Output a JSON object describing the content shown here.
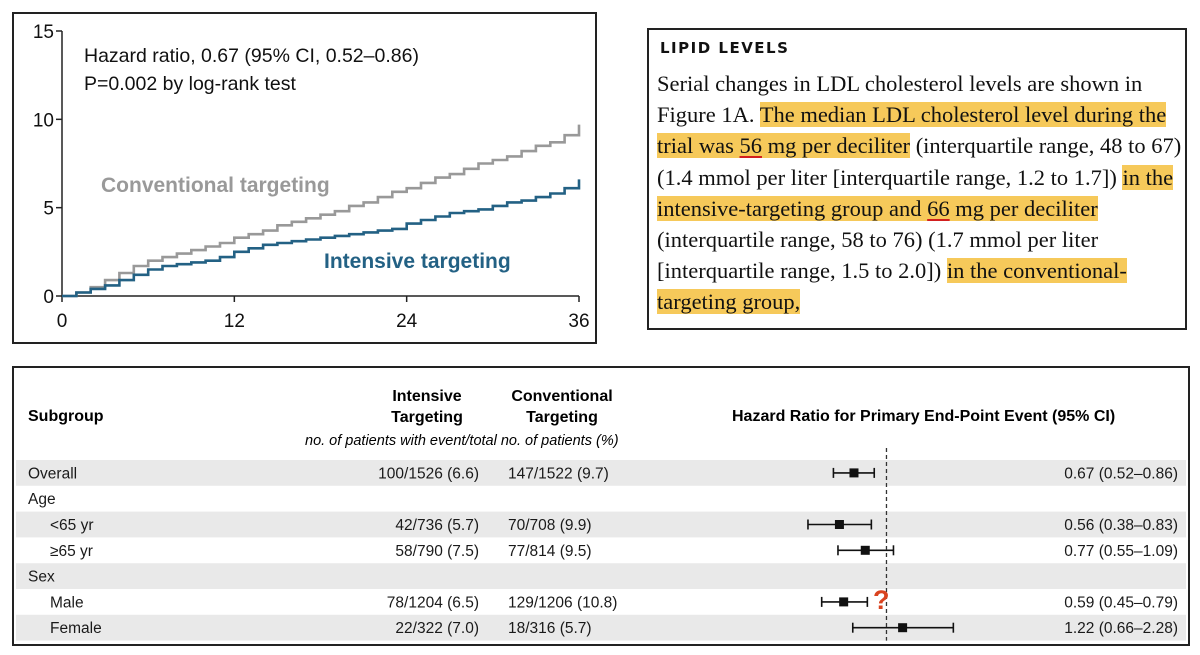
{
  "km_chart": {
    "annotation_line1": "Hazard ratio, 0.67 (95% CI, 0.52–0.86)",
    "annotation_line2": "P=0.002 by log-rank test",
    "chart_data": {
      "type": "line",
      "title": "",
      "xlabel": "",
      "ylabel": "",
      "xlim": [
        0,
        36
      ],
      "ylim": [
        0,
        15
      ],
      "x_ticks": [
        0,
        12,
        24,
        36
      ],
      "y_ticks": [
        0,
        5,
        10,
        15
      ],
      "x_tick_labels": [
        "0",
        "12",
        "24",
        "36"
      ],
      "y_tick_labels": [
        "0",
        "5",
        "10",
        "15"
      ],
      "grid": false,
      "series": [
        {
          "name": "Conventional targeting",
          "color": "#999999",
          "x": [
            0,
            1,
            2,
            3,
            4,
            5,
            6,
            7,
            8,
            9,
            10,
            11,
            12,
            13,
            14,
            15,
            16,
            17,
            18,
            19,
            20,
            21,
            22,
            23,
            24,
            25,
            26,
            27,
            28,
            29,
            30,
            31,
            32,
            33,
            34,
            35,
            36
          ],
          "y": [
            0,
            0.2,
            0.5,
            0.9,
            1.3,
            1.7,
            2.0,
            2.2,
            2.4,
            2.6,
            2.8,
            3.0,
            3.3,
            3.5,
            3.7,
            4.0,
            4.2,
            4.4,
            4.6,
            4.8,
            5.1,
            5.3,
            5.6,
            5.9,
            6.1,
            6.4,
            6.7,
            6.9,
            7.2,
            7.5,
            7.7,
            7.9,
            8.2,
            8.5,
            8.7,
            9.1,
            9.7
          ]
        },
        {
          "name": "Intensive targeting",
          "color": "#236184",
          "x": [
            0,
            1,
            2,
            3,
            4,
            5,
            6,
            7,
            8,
            9,
            10,
            11,
            12,
            13,
            14,
            15,
            16,
            17,
            18,
            19,
            20,
            21,
            22,
            23,
            24,
            25,
            26,
            27,
            28,
            29,
            30,
            31,
            32,
            33,
            34,
            35,
            36
          ],
          "y": [
            0,
            0.2,
            0.4,
            0.6,
            0.9,
            1.2,
            1.5,
            1.7,
            1.8,
            1.9,
            2.0,
            2.2,
            2.5,
            2.7,
            2.9,
            3.0,
            3.1,
            3.2,
            3.3,
            3.4,
            3.5,
            3.6,
            3.7,
            3.8,
            4.1,
            4.3,
            4.5,
            4.7,
            4.8,
            4.9,
            5.1,
            5.3,
            5.4,
            5.6,
            5.8,
            6.1,
            6.6
          ]
        }
      ]
    }
  },
  "lipid": {
    "heading": "LIPID LEVELS",
    "seg1": "Serial changes in LDL cholesterol levels are shown in Figure 1A. ",
    "seg2a": "The median LDL cholesterol level during the trial was ",
    "seg2num": "56",
    "seg2b": " mg per deciliter",
    "seg3": " (interquartile range, 48 to 67) (1.4 mmol per liter [interquartile range, 1.2 to 1.7]) ",
    "seg4a": "in the intensive-targeting group and ",
    "seg4num": "66",
    "seg4b": " mg per deciliter",
    "seg5": " (interquartile range, 58 to 76) (1.7 mmol per liter [interquartile range, 1.5 to 2.0]) ",
    "seg6": "in the conventional-targeting group,"
  },
  "forest": {
    "headers": {
      "subgroup": "Subgroup",
      "intensive_1": "Intensive",
      "intensive_2": "Targeting",
      "conventional_1": "Conventional",
      "conventional_2": "Targeting",
      "subnote": "no. of patients with event/total no. of patients (%)",
      "hr": "Hazard Ratio for Primary End-Point Event (95% CI)"
    },
    "question_mark": "?",
    "chart_data": {
      "type": "scatter",
      "title": "",
      "reference_line": 1.0,
      "rows": [
        {
          "label": "Overall",
          "indent": false,
          "header": false,
          "intensive": "100/1526 (6.6)",
          "conventional": "147/1522 (9.7)",
          "hr_text": "0.67 (0.52–0.86)",
          "hr": 0.67,
          "lo": 0.52,
          "hi": 0.86,
          "shaded": true
        },
        {
          "label": "Age",
          "indent": false,
          "header": true,
          "shaded": false
        },
        {
          "label": "<65 yr",
          "indent": true,
          "header": false,
          "intensive": "42/736 (5.7)",
          "conventional": "70/708 (9.9)",
          "hr_text": "0.56 (0.38–0.83)",
          "hr": 0.56,
          "lo": 0.38,
          "hi": 0.83,
          "shaded": true
        },
        {
          "label": "≥65 yr",
          "indent": true,
          "header": false,
          "intensive": "58/790 (7.5)",
          "conventional": "77/814 (9.5)",
          "hr_text": "0.77 (0.55–1.09)",
          "hr": 0.77,
          "lo": 0.55,
          "hi": 1.09,
          "shaded": false
        },
        {
          "label": "Sex",
          "indent": false,
          "header": true,
          "shaded": true
        },
        {
          "label": "Male",
          "indent": true,
          "header": false,
          "intensive": "78/1204 (6.5)",
          "conventional": "129/1206 (10.8)",
          "hr_text": "0.59 (0.45–0.79)",
          "hr": 0.59,
          "lo": 0.45,
          "hi": 0.79,
          "shaded": false
        },
        {
          "label": "Female",
          "indent": true,
          "header": false,
          "intensive": "22/322 (7.0)",
          "conventional": "18/316 (5.7)",
          "hr_text": "1.22 (0.66–2.28)",
          "hr": 1.22,
          "lo": 0.66,
          "hi": 2.28,
          "shaded": true
        }
      ]
    }
  }
}
